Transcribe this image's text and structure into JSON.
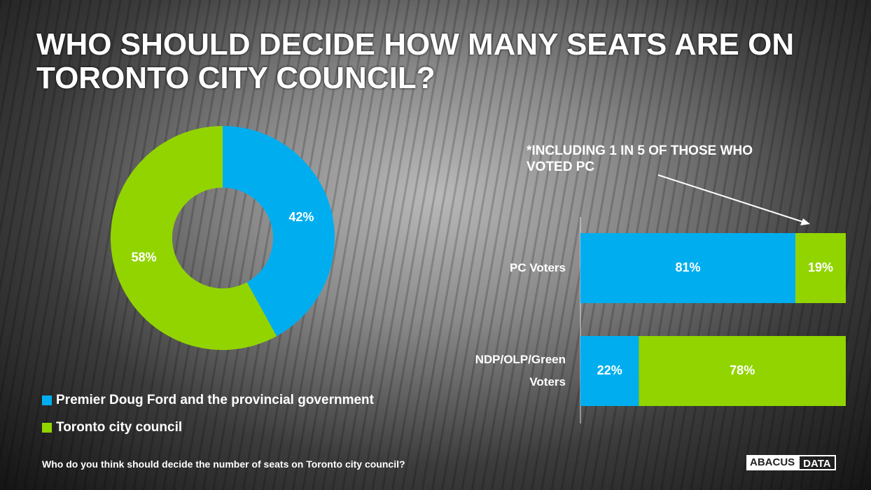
{
  "slide": {
    "title": "WHO SHOULD DECIDE HOW MANY SEATS ARE ON TORONTO CITY COUNCIL?",
    "question": "Who do you think should decide the number of seats on Toronto city council?",
    "logo_left": "ABACUS",
    "logo_right": "DATA"
  },
  "chart_data": [
    {
      "type": "donut",
      "labels": [
        "Premier Doug Ford and the provincial government",
        "Toronto city council"
      ],
      "values": [
        42,
        58
      ],
      "value_labels": [
        "42%",
        "58%"
      ],
      "colors": [
        "#00aeef",
        "#92d400"
      ]
    },
    {
      "type": "bar",
      "orientation": "horizontal",
      "stacked": true,
      "categories": [
        "PC Voters",
        "NDP/OLP/Green Voters"
      ],
      "xlim": [
        0,
        100
      ],
      "series": [
        {
          "color": "#00aeef",
          "values": [
            81,
            22
          ],
          "value_labels": [
            "81%",
            "22%"
          ]
        },
        {
          "color": "#92d400",
          "values": [
            19,
            78
          ],
          "value_labels": [
            "19%",
            "78%"
          ]
        }
      ],
      "annotation": "*INCLUDING 1 IN 5 OF THOSE WHO VOTED PC"
    }
  ]
}
